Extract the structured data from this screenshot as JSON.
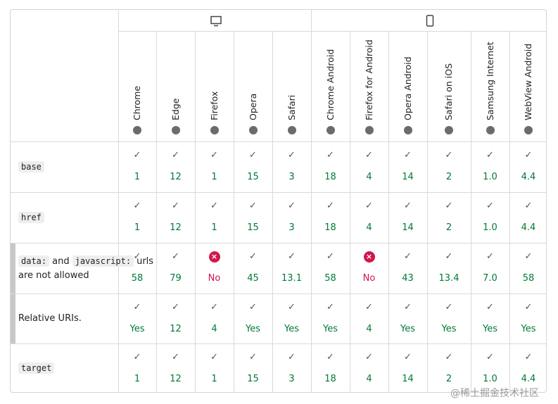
{
  "browsers": [
    "Chrome",
    "Edge",
    "Firefox",
    "Opera",
    "Safari",
    "Chrome Android",
    "Firefox for Android",
    "Opera Android",
    "Safari on iOS",
    "Samsung Internet",
    "WebView Android"
  ],
  "rows": [
    {
      "subfeature": false,
      "label": [
        {
          "text": "base",
          "code": true
        }
      ],
      "cells": [
        {
          "value": "1",
          "supported": true
        },
        {
          "value": "12",
          "supported": true
        },
        {
          "value": "1",
          "supported": true
        },
        {
          "value": "15",
          "supported": true
        },
        {
          "value": "3",
          "supported": true
        },
        {
          "value": "18",
          "supported": true
        },
        {
          "value": "4",
          "supported": true
        },
        {
          "value": "14",
          "supported": true
        },
        {
          "value": "2",
          "supported": true
        },
        {
          "value": "1.0",
          "supported": true
        },
        {
          "value": "4.4",
          "supported": true
        }
      ]
    },
    {
      "subfeature": false,
      "label": [
        {
          "text": "href",
          "code": true
        }
      ],
      "cells": [
        {
          "value": "1",
          "supported": true
        },
        {
          "value": "12",
          "supported": true
        },
        {
          "value": "1",
          "supported": true
        },
        {
          "value": "15",
          "supported": true
        },
        {
          "value": "3",
          "supported": true
        },
        {
          "value": "18",
          "supported": true
        },
        {
          "value": "4",
          "supported": true
        },
        {
          "value": "14",
          "supported": true
        },
        {
          "value": "2",
          "supported": true
        },
        {
          "value": "1.0",
          "supported": true
        },
        {
          "value": "4.4",
          "supported": true
        }
      ]
    },
    {
      "subfeature": true,
      "label": [
        {
          "text": "data:",
          "code": true
        },
        {
          "text": "and",
          "code": false
        },
        {
          "text": "javascript:",
          "code": true
        },
        {
          "text": "urls are not allowed",
          "code": false
        }
      ],
      "cells": [
        {
          "value": "58",
          "supported": true
        },
        {
          "value": "79",
          "supported": true
        },
        {
          "value": "No",
          "supported": false
        },
        {
          "value": "45",
          "supported": true
        },
        {
          "value": "13.1",
          "supported": true
        },
        {
          "value": "58",
          "supported": true
        },
        {
          "value": "No",
          "supported": false
        },
        {
          "value": "43",
          "supported": true
        },
        {
          "value": "13.4",
          "supported": true
        },
        {
          "value": "7.0",
          "supported": true
        },
        {
          "value": "58",
          "supported": true
        }
      ]
    },
    {
      "subfeature": true,
      "label": [
        {
          "text": "Relative URIs.",
          "code": false
        }
      ],
      "cells": [
        {
          "value": "Yes",
          "supported": true
        },
        {
          "value": "12",
          "supported": true
        },
        {
          "value": "4",
          "supported": true
        },
        {
          "value": "Yes",
          "supported": true
        },
        {
          "value": "Yes",
          "supported": true
        },
        {
          "value": "Yes",
          "supported": true
        },
        {
          "value": "4",
          "supported": true
        },
        {
          "value": "Yes",
          "supported": true
        },
        {
          "value": "Yes",
          "supported": true
        },
        {
          "value": "Yes",
          "supported": true
        },
        {
          "value": "Yes",
          "supported": true
        }
      ]
    },
    {
      "subfeature": false,
      "label": [
        {
          "text": "target",
          "code": true
        }
      ],
      "cells": [
        {
          "value": "1",
          "supported": true
        },
        {
          "value": "12",
          "supported": true
        },
        {
          "value": "1",
          "supported": true
        },
        {
          "value": "15",
          "supported": true
        },
        {
          "value": "3",
          "supported": true
        },
        {
          "value": "18",
          "supported": true
        },
        {
          "value": "4",
          "supported": true
        },
        {
          "value": "14",
          "supported": true
        },
        {
          "value": "2",
          "supported": true
        },
        {
          "value": "1.0",
          "supported": true
        },
        {
          "value": "4.4",
          "supported": true
        }
      ]
    }
  ],
  "watermark": "@稀土掘金技术社区"
}
